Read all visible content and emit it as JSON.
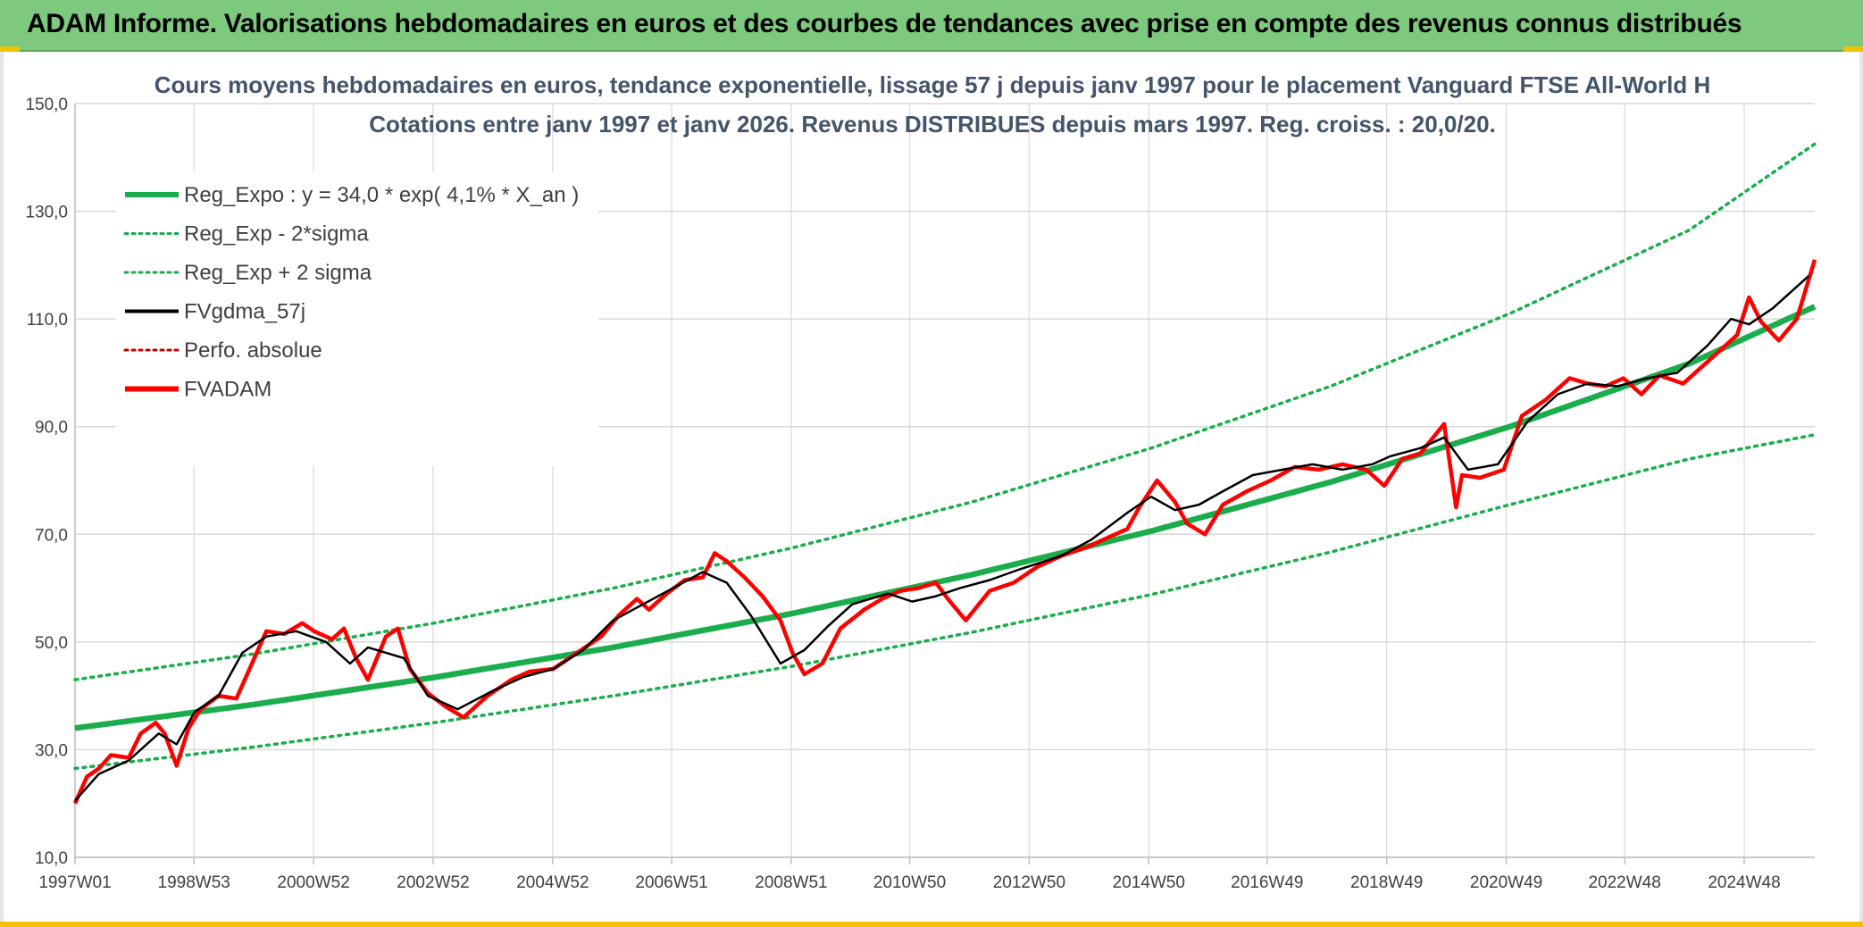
{
  "banner": {
    "title": "ADAM Informe. Valorisations hebdomadaires en euros et des courbes de tendances avec prise en compte des revenus connus distribués"
  },
  "colors": {
    "banner_bg": "#7dc97d",
    "trend_green": "#1aad4b",
    "price_red": "#ff0000",
    "smooth_black": "#000000",
    "perf_red": "#c00000",
    "grid": "#d9d9d9",
    "title_text": "#44546a"
  },
  "chart_data": {
    "type": "line",
    "title_line1": "Cours moyens hebdomadaires en euros, tendance exponentielle, lissage 57 j depuis janv 1997 pour le placement Vanguard FTSE All-World H",
    "title_line2": "Cotations entre janv 1997 et janv 2026. Revenus DISTRIBUES depuis mars 1997. Reg. croiss. : 20,0/20.",
    "xlabel": "",
    "ylabel": "",
    "ylim": [
      10,
      150
    ],
    "y_ticks": [
      "10,0",
      "30,0",
      "50,0",
      "70,0",
      "90,0",
      "110,0",
      "130,0",
      "150,0"
    ],
    "xlim": [
      1997.0,
      2026.1
    ],
    "x_ticks": [
      {
        "x": 1997.0,
        "label": "1997W01"
      },
      {
        "x": 1998.99,
        "label": "1998W53"
      },
      {
        "x": 2000.99,
        "label": "2000W52"
      },
      {
        "x": 2002.99,
        "label": "2002W52"
      },
      {
        "x": 2004.99,
        "label": "2004W52"
      },
      {
        "x": 2006.98,
        "label": "2006W51"
      },
      {
        "x": 2008.98,
        "label": "2008W51"
      },
      {
        "x": 2010.96,
        "label": "2010W50"
      },
      {
        "x": 2012.96,
        "label": "2012W50"
      },
      {
        "x": 2014.96,
        "label": "2014W50"
      },
      {
        "x": 2016.94,
        "label": "2016W49"
      },
      {
        "x": 2018.94,
        "label": "2018W49"
      },
      {
        "x": 2020.94,
        "label": "2020W49"
      },
      {
        "x": 2022.92,
        "label": "2022W48"
      },
      {
        "x": 2024.92,
        "label": "2024W48"
      }
    ],
    "grid": true,
    "legend_position": "top-left",
    "series": [
      {
        "name": "Reg_Expo : y = 34,0 * exp( 4,1% *  X_an )",
        "style": "solid-thick",
        "color": "#1aad4b",
        "x": [
          1997,
          2000,
          2003,
          2006,
          2009,
          2012,
          2015,
          2018,
          2021,
          2024,
          2026.1
        ],
        "values": [
          34.0,
          38.4,
          43.4,
          49.0,
          55.3,
          62.5,
          70.6,
          79.7,
          90.0,
          101.7,
          112.3
        ]
      },
      {
        "name": "Reg_Exp - 2*sigma",
        "style": "dotted",
        "color": "#1aad4b",
        "x": [
          1997,
          2000,
          2003,
          2006,
          2009,
          2012,
          2015,
          2018,
          2021,
          2024,
          2026.1
        ],
        "values": [
          26.5,
          30.5,
          35.0,
          40.0,
          45.5,
          51.8,
          58.8,
          66.7,
          75.5,
          84.0,
          88.5
        ]
      },
      {
        "name": "Reg_Exp + 2 sigma",
        "style": "dotted",
        "color": "#1aad4b",
        "x": [
          1997,
          2000,
          2003,
          2006,
          2009,
          2012,
          2015,
          2018,
          2021,
          2024,
          2026.1
        ],
        "values": [
          43.0,
          47.8,
          53.5,
          60.0,
          67.5,
          76.0,
          86.0,
          97.5,
          111.0,
          126.5,
          142.5
        ]
      },
      {
        "name": "FVgdma_57j",
        "style": "solid-thin",
        "color": "#000000",
        "x": [
          1997.0,
          1997.4,
          1997.9,
          1998.4,
          1998.7,
          1999.0,
          1999.4,
          1999.8,
          2000.2,
          2000.7,
          2001.2,
          2001.6,
          2001.9,
          2002.5,
          2002.9,
          2003.4,
          2004.0,
          2004.5,
          2005.0,
          2005.5,
          2006.0,
          2006.5,
          2007.0,
          2007.5,
          2007.9,
          2008.3,
          2008.8,
          2009.2,
          2009.6,
          2010.0,
          2010.6,
          2011.0,
          2011.4,
          2011.8,
          2012.3,
          2012.8,
          2013.5,
          2014.0,
          2014.6,
          2015.0,
          2015.4,
          2015.8,
          2016.2,
          2016.7,
          2017.2,
          2017.7,
          2018.2,
          2018.7,
          2019.0,
          2019.5,
          2019.9,
          2020.3,
          2020.8,
          2021.3,
          2021.8,
          2022.3,
          2022.8,
          2023.3,
          2023.8,
          2024.3,
          2024.7,
          2025.0,
          2025.4,
          2026.0
        ],
        "values": [
          20.5,
          25.5,
          28.0,
          33.0,
          31.0,
          37.0,
          40.0,
          48.0,
          51.0,
          52.0,
          50.0,
          46.0,
          49.0,
          47.0,
          40.0,
          37.5,
          41.0,
          43.5,
          45.0,
          48.5,
          54.0,
          57.0,
          60.0,
          63.0,
          61.0,
          55.0,
          46.0,
          48.5,
          53.0,
          57.0,
          59.0,
          57.5,
          58.5,
          60.0,
          61.5,
          63.5,
          66.0,
          69.0,
          74.0,
          77.0,
          74.5,
          75.5,
          78.0,
          81.0,
          82.0,
          83.0,
          82.0,
          83.0,
          84.5,
          86.0,
          88.0,
          82.0,
          83.0,
          91.0,
          96.0,
          98.0,
          97.5,
          99.0,
          100.0,
          105.0,
          110.0,
          109.0,
          112.0,
          118.0
        ]
      },
      {
        "name": "Perfo. absolue",
        "style": "dotted",
        "color": "#c00000",
        "x": [],
        "values": []
      },
      {
        "name": "FVADAM",
        "style": "solid-thick",
        "color": "#ff0000",
        "x": [
          1997.0,
          1997.2,
          1997.4,
          1997.6,
          1997.9,
          1998.1,
          1998.35,
          1998.5,
          1998.7,
          1998.9,
          1999.1,
          1999.4,
          1999.7,
          2000.0,
          2000.2,
          2000.5,
          2000.8,
          2001.0,
          2001.3,
          2001.5,
          2001.7,
          2001.9,
          2002.2,
          2002.4,
          2002.6,
          2002.9,
          2003.2,
          2003.5,
          2003.9,
          2004.3,
          2004.6,
          2005.0,
          2005.4,
          2005.8,
          2006.1,
          2006.4,
          2006.6,
          2006.9,
          2007.2,
          2007.5,
          2007.7,
          2007.9,
          2008.2,
          2008.5,
          2008.8,
          2009.0,
          2009.2,
          2009.5,
          2009.8,
          2010.2,
          2010.5,
          2010.8,
          2011.1,
          2011.4,
          2011.6,
          2011.9,
          2012.3,
          2012.7,
          2013.1,
          2013.5,
          2013.9,
          2014.3,
          2014.6,
          2014.8,
          2015.1,
          2015.4,
          2015.6,
          2015.9,
          2016.2,
          2016.6,
          2017.0,
          2017.4,
          2017.8,
          2018.2,
          2018.6,
          2018.9,
          2019.2,
          2019.5,
          2019.9,
          2020.1,
          2020.2,
          2020.5,
          2020.9,
          2021.2,
          2021.6,
          2022.0,
          2022.3,
          2022.6,
          2022.9,
          2023.2,
          2023.5,
          2023.9,
          2024.2,
          2024.5,
          2024.8,
          2025.0,
          2025.2,
          2025.5,
          2025.8,
          2026.1
        ],
        "values": [
          20.0,
          25.0,
          26.5,
          29.0,
          28.5,
          33.0,
          35.0,
          33.0,
          27.0,
          34.0,
          37.5,
          40.0,
          39.5,
          47.0,
          52.0,
          51.5,
          53.5,
          52.0,
          50.5,
          52.5,
          47.0,
          43.0,
          51.0,
          52.5,
          45.0,
          40.5,
          38.0,
          36.0,
          40.0,
          43.0,
          44.5,
          45.0,
          48.0,
          51.0,
          55.0,
          58.0,
          56.0,
          59.0,
          61.5,
          62.0,
          66.5,
          65.0,
          62.0,
          58.5,
          54.0,
          48.0,
          44.0,
          46.0,
          52.5,
          56.0,
          58.0,
          59.5,
          60.0,
          61.0,
          58.0,
          54.0,
          59.5,
          61.0,
          64.0,
          66.0,
          67.5,
          69.5,
          71.0,
          75.0,
          80.0,
          76.0,
          72.0,
          70.0,
          75.5,
          78.0,
          80.0,
          82.5,
          82.0,
          83.0,
          82.0,
          79.0,
          84.0,
          85.0,
          90.5,
          75.0,
          81.0,
          80.5,
          82.0,
          92.0,
          95.0,
          99.0,
          98.0,
          97.5,
          99.0,
          96.0,
          99.5,
          98.0,
          101.0,
          104.0,
          107.0,
          114.0,
          109.5,
          106.0,
          110.0,
          121.0
        ]
      }
    ]
  }
}
